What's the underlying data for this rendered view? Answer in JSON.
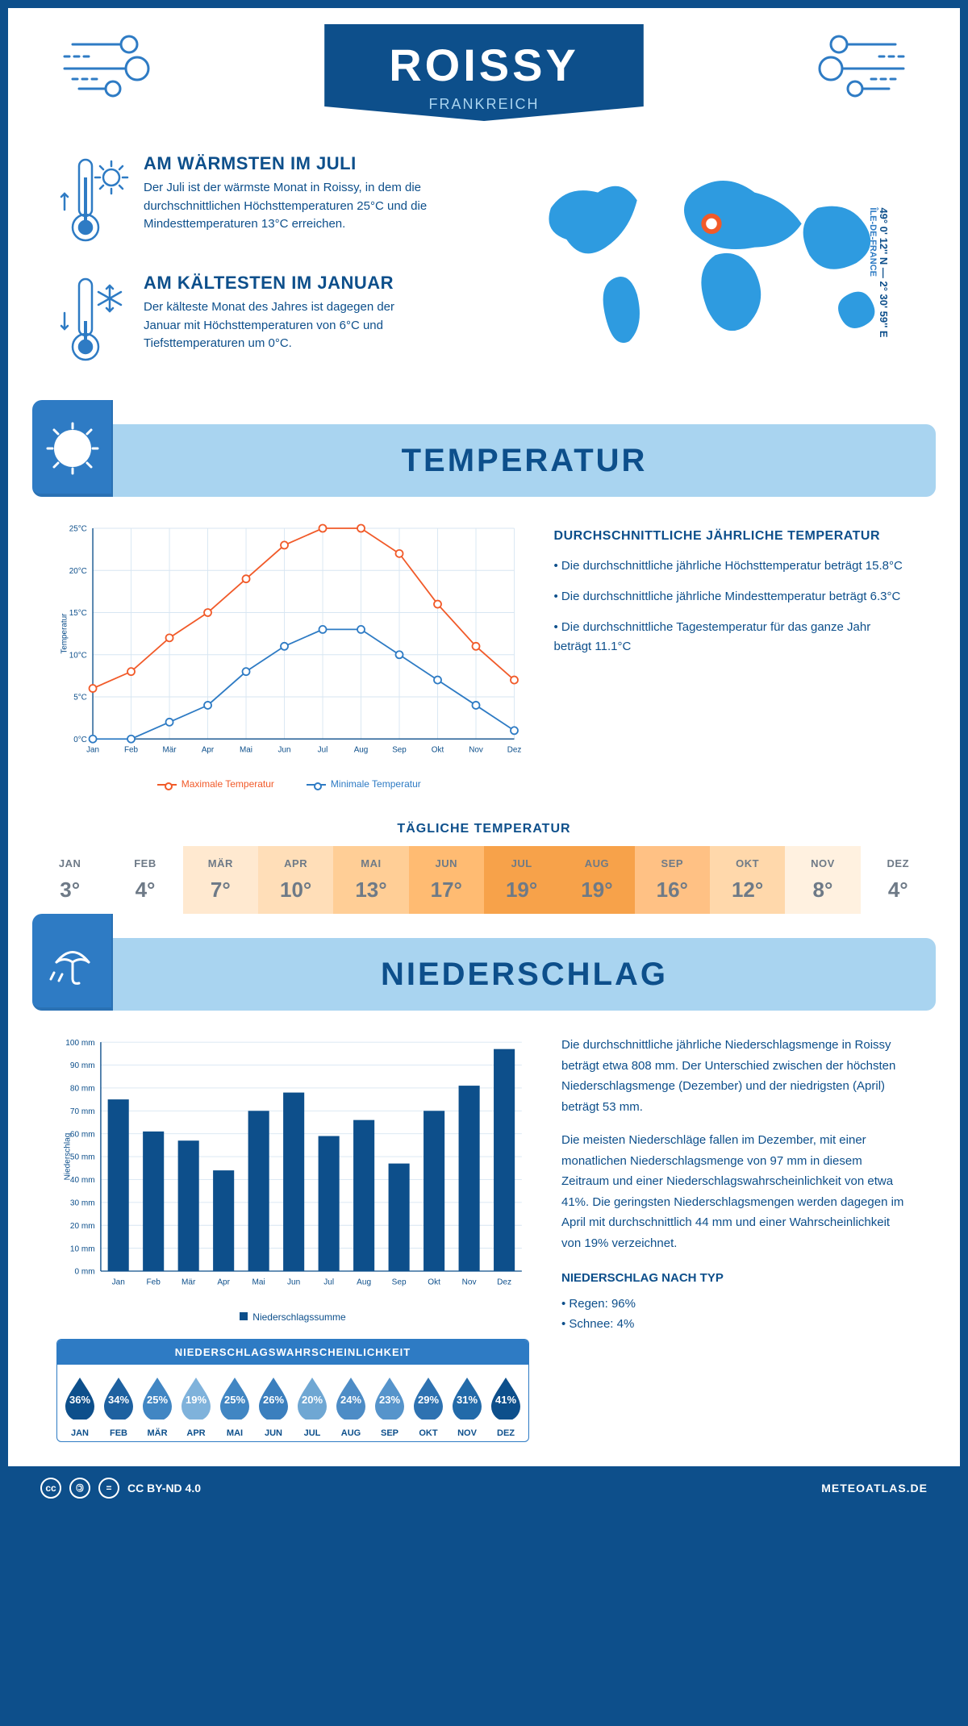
{
  "header": {
    "title": "ROISSY",
    "subtitle": "FRANKREICH",
    "coords": "49° 0' 12'' N — 2° 30' 59'' E",
    "region": "ÎLE-DE-FRANCE"
  },
  "facts": {
    "warm": {
      "title": "AM WÄRMSTEN IM JULI",
      "text": "Der Juli ist der wärmste Monat in Roissy, in dem die durchschnittlichen Höchsttemperaturen 25°C und die Mindesttemperaturen 13°C erreichen."
    },
    "cold": {
      "title": "AM KÄLTESTEN IM JANUAR",
      "text": "Der kälteste Monat des Jahres ist dagegen der Januar mit Höchsttemperaturen von 6°C und Tiefsttemperaturen um 0°C."
    }
  },
  "sections": {
    "temperature": "TEMPERATUR",
    "precipitation": "NIEDERSCHLAG"
  },
  "temp_chart": {
    "type": "line",
    "months": [
      "Jan",
      "Feb",
      "Mär",
      "Apr",
      "Mai",
      "Jun",
      "Jul",
      "Aug",
      "Sep",
      "Okt",
      "Nov",
      "Dez"
    ],
    "max_series": {
      "label": "Maximale Temperatur",
      "color": "#f15a29",
      "values": [
        6,
        8,
        12,
        15,
        19,
        23,
        25,
        25,
        22,
        16,
        11,
        7
      ]
    },
    "min_series": {
      "label": "Minimale Temperatur",
      "color": "#2e7bc4",
      "values": [
        0,
        0,
        2,
        4,
        8,
        11,
        13,
        13,
        10,
        7,
        4,
        1
      ]
    },
    "ylim": [
      0,
      25
    ],
    "ytick_step": 5,
    "ylabel": "Temperatur",
    "grid_color": "#d7e6f2",
    "axis_color": "#0d4f8b",
    "line_width": 2,
    "marker": "circle",
    "marker_size": 5,
    "background_color": "#ffffff",
    "font_size": 11
  },
  "temp_bullets": {
    "heading": "DURCHSCHNITTLICHE JÄHRLICHE TEMPERATUR",
    "b1": "• Die durchschnittliche jährliche Höchsttemperatur beträgt 15.8°C",
    "b2": "• Die durchschnittliche jährliche Mindesttemperatur beträgt 6.3°C",
    "b3": "• Die durchschnittliche Tagestemperatur für das ganze Jahr beträgt 11.1°C"
  },
  "daily": {
    "title": "TÄGLICHE TEMPERATUR",
    "months": [
      "JAN",
      "FEB",
      "MÄR",
      "APR",
      "MAI",
      "JUN",
      "JUL",
      "AUG",
      "SEP",
      "OKT",
      "NOV",
      "DEZ"
    ],
    "values": [
      "3°",
      "4°",
      "7°",
      "10°",
      "13°",
      "17°",
      "19°",
      "19°",
      "16°",
      "12°",
      "8°",
      "4°"
    ],
    "colors": [
      "#ffffff",
      "#ffffff",
      "#ffe9d0",
      "#ffdeb8",
      "#ffce96",
      "#ffbb72",
      "#f7a24a",
      "#f7a24a",
      "#ffc184",
      "#ffd8ab",
      "#fff1e0",
      "#ffffff"
    ]
  },
  "precip_chart": {
    "type": "bar",
    "months": [
      "Jan",
      "Feb",
      "Mär",
      "Apr",
      "Mai",
      "Jun",
      "Jul",
      "Aug",
      "Sep",
      "Okt",
      "Nov",
      "Dez"
    ],
    "values": [
      75,
      61,
      57,
      44,
      70,
      78,
      59,
      66,
      47,
      70,
      81,
      97
    ],
    "bar_color": "#0d4f8b",
    "ylim": [
      0,
      100
    ],
    "ytick_step": 10,
    "ylabel": "Niederschlag",
    "legend_label": "Niederschlagssumme",
    "grid_color": "#d7e6f2",
    "axis_color": "#0d4f8b",
    "bar_width": 0.6,
    "font_size": 11,
    "background_color": "#ffffff"
  },
  "precip_text": {
    "p1": "Die durchschnittliche jährliche Niederschlagsmenge in Roissy beträgt etwa 808 mm. Der Unterschied zwischen der höchsten Niederschlagsmenge (Dezember) und der niedrigsten (April) beträgt 53 mm.",
    "p2": "Die meisten Niederschläge fallen im Dezember, mit einer monatlichen Niederschlagsmenge von 97 mm in diesem Zeitraum und einer Niederschlagswahrscheinlichkeit von etwa 41%. Die geringsten Niederschlagsmengen werden dagegen im April mit durchschnittlich 44 mm und einer Wahrscheinlichkeit von 19% verzeichnet.",
    "type_heading": "NIEDERSCHLAG NACH TYP",
    "type1": "• Regen: 96%",
    "type2": "• Schnee: 4%"
  },
  "drops": {
    "title": "NIEDERSCHLAGSWAHRSCHEINLICHKEIT",
    "months": [
      "JAN",
      "FEB",
      "MÄR",
      "APR",
      "MAI",
      "JUN",
      "JUL",
      "AUG",
      "SEP",
      "OKT",
      "NOV",
      "DEZ"
    ],
    "values": [
      "36%",
      "34%",
      "25%",
      "19%",
      "25%",
      "26%",
      "20%",
      "24%",
      "23%",
      "29%",
      "31%",
      "41%"
    ],
    "colors": [
      "#0d4f8b",
      "#1e61a0",
      "#4186c3",
      "#7fb2db",
      "#4186c3",
      "#3b7fbe",
      "#6fa7d3",
      "#4d8cc6",
      "#5694cb",
      "#2e72b1",
      "#226aa9",
      "#0d4f8b"
    ]
  },
  "footer": {
    "license": "CC BY-ND 4.0",
    "site": "METEOATLAS.DE"
  }
}
